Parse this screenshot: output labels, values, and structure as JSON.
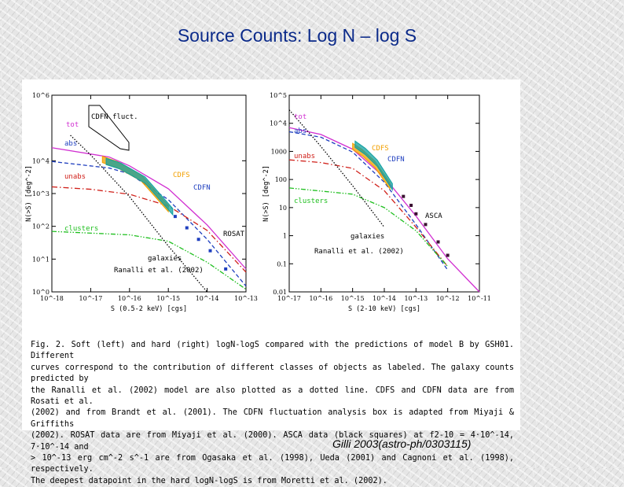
{
  "slide": {
    "title": "Source Counts:  Log N – log S",
    "citation": "Gilli 2003(astro-ph/0303115)"
  },
  "colors": {
    "title": "#0b2a8a",
    "tot": "#d12fd1",
    "abs": "#1f3fbf",
    "unabs": "#d0201a",
    "clusters": "#1fbf1f",
    "galaxies": "#000000",
    "cdfs": "#f2a000",
    "cdfn": "#10a0a0",
    "asca": "#3a1030"
  },
  "caption": {
    "lines": [
      "Fig. 2. Soft (left) and hard (right) logN-logS compared with the predictions of model B by GSH01. Different",
      "curves correspond to the contribution of different classes of objects as labeled. The galaxy counts predicted by",
      "the Ranalli et al. (2002) model are also plotted as a dotted line. CDFS and CDFN data are from Rosati et al.",
      "(2002) and from Brandt et al. (2001). The CDFN fluctuation analysis box is adapted from Miyaji & Griffiths",
      "(2002). ROSAT data are from Miyaji et al. (2000). ASCA data (black squares) at f2-10 = 4·10^-14, 7·10^-14 and",
      "> 10^-13 erg cm^-2 s^-1 are from Ogasaka et al. (1998), Ueda (2001) and Cagnoni et al. (1998), respectively.",
      "The deepest datapoint in the hard logN-logS is from Moretti et al. (2002)."
    ]
  },
  "chart_data": [
    {
      "type": "line",
      "title": "",
      "xlabel": "S (0.5-2 keV) [cgs]",
      "ylabel": "N(>S) [deg^-2]",
      "xscale": "log",
      "yscale": "log",
      "xlim": [
        1e-18,
        1e-13
      ],
      "ylim": [
        1,
        1000000.0
      ],
      "x_tick_labels": [
        "10^-18",
        "10^-17",
        "10^-16",
        "10^-15",
        "10^-14",
        "10^-13"
      ],
      "y_tick_labels": [
        "10^0",
        "10^1",
        "10^2",
        "10^3",
        "10^4",
        "10^6"
      ],
      "series": [
        {
          "name": "tot",
          "color": "#d12fd1",
          "style": "solid",
          "x": [
            1e-18,
            3e-17,
            1e-16,
            1e-15,
            1e-14,
            1e-13
          ],
          "y": [
            25000,
            13000,
            7000,
            1400,
            110,
            5
          ]
        },
        {
          "name": "abs",
          "color": "#1f3fbf",
          "style": "dashed",
          "x": [
            1e-18,
            3e-17,
            1e-16,
            1e-15,
            1e-14,
            1e-13
          ],
          "y": [
            9500,
            6000,
            4000,
            650,
            40,
            1.5
          ]
        },
        {
          "name": "unabs",
          "color": "#d0201a",
          "style": "dashdot",
          "x": [
            1e-18,
            1e-17,
            1e-16,
            1e-15,
            1e-14,
            1e-13
          ],
          "y": [
            1600,
            1350,
            950,
            420,
            75,
            4
          ]
        },
        {
          "name": "clusters",
          "color": "#1fbf1f",
          "style": "dashdotdot",
          "x": [
            1e-18,
            1e-16,
            1e-15,
            1e-14,
            1e-13
          ],
          "y": [
            70,
            55,
            35,
            8,
            1.2
          ]
        },
        {
          "name": "galaxies",
          "color": "#000000",
          "style": "dotted",
          "x": [
            3e-18,
            1e-17,
            1e-16,
            1e-15,
            1e-14
          ],
          "y": [
            60000,
            15000,
            800,
            25,
            1
          ]
        },
        {
          "name": "CDFS",
          "color": "#f2a000",
          "style": "band",
          "x": [
            2e-17,
            5e-17,
            2e-16,
            1e-15
          ],
          "y": [
            11000,
            7500,
            3000,
            350
          ]
        },
        {
          "name": "CDFN",
          "color": "#10a0a0",
          "style": "band",
          "x": [
            2.5e-17,
            6e-17,
            2.5e-16,
            1.3e-15
          ],
          "y": [
            9500,
            6800,
            2600,
            280
          ]
        },
        {
          "name": "ROSAT",
          "color": "#1f3fbf",
          "style": "points",
          "x": [
            1.5e-15,
            3e-15,
            6e-15,
            1.2e-14,
            3e-14
          ],
          "y": [
            200,
            90,
            40,
            18,
            5
          ]
        }
      ],
      "annotations": [
        "CDFN fluct.",
        "tot",
        "abs",
        "unabs",
        "clusters",
        "galaxies",
        "Ranalli et al. (2002)",
        "CDFS",
        "CDFN",
        "ROSAT"
      ]
    },
    {
      "type": "line",
      "title": "",
      "xlabel": "S (2-10 keV) [cgs]",
      "ylabel": "N(>S) [deg^-2]",
      "xscale": "log",
      "yscale": "log",
      "xlim": [
        1e-17,
        1e-11
      ],
      "ylim": [
        0.01,
        100000.0
      ],
      "x_tick_labels": [
        "10^-17",
        "10^-16",
        "10^-15",
        "10^-14",
        "10^-13",
        "10^-12",
        "10^-11"
      ],
      "y_tick_labels": [
        "10^5",
        "10^4",
        "1000",
        "100",
        "10",
        "1",
        "0.1",
        "0.01"
      ],
      "series": [
        {
          "name": "tot",
          "color": "#d12fd1",
          "style": "solid",
          "x": [
            1e-17,
            1e-16,
            1e-15,
            1e-14,
            1e-13,
            1e-12,
            1e-11
          ],
          "y": [
            7000,
            4000,
            1200,
            120,
            5,
            0.15,
            0.01
          ]
        },
        {
          "name": "abs",
          "color": "#1f3fbf",
          "style": "dashed",
          "x": [
            1e-17,
            1e-16,
            1e-15,
            1e-14,
            1e-13,
            1e-12
          ],
          "y": [
            5000,
            3200,
            950,
            80,
            2.5,
            0.06
          ]
        },
        {
          "name": "unabs",
          "color": "#d0201a",
          "style": "dashdot",
          "x": [
            1e-17,
            1e-16,
            1e-15,
            1e-14,
            1e-13,
            1e-12
          ],
          "y": [
            500,
            400,
            250,
            40,
            2,
            0.08
          ]
        },
        {
          "name": "clusters",
          "color": "#1fbf1f",
          "style": "dashdotdot",
          "x": [
            1e-17,
            1e-15,
            1e-14,
            1e-13,
            1e-12
          ],
          "y": [
            50,
            30,
            10,
            1.5,
            0.08
          ]
        },
        {
          "name": "galaxies",
          "color": "#000000",
          "style": "dotted",
          "x": [
            1e-17,
            1e-16,
            1e-15,
            1e-14
          ],
          "y": [
            30000,
            1500,
            60,
            2
          ]
        },
        {
          "name": "CDFS",
          "color": "#f2a000",
          "style": "band",
          "x": [
            1e-15,
            2e-15,
            5e-15,
            1.5e-14
          ],
          "y": [
            1500,
            900,
            350,
            60
          ]
        },
        {
          "name": "CDFN",
          "color": "#10a0a0",
          "style": "band",
          "x": [
            1.2e-15,
            2.5e-15,
            6e-15,
            1.8e-14
          ],
          "y": [
            1800,
            1000,
            380,
            55
          ]
        },
        {
          "name": "ASCA",
          "color": "#3a1030",
          "style": "points",
          "x": [
            4e-14,
            7e-14,
            1e-13,
            2e-13,
            5e-13,
            1e-12
          ],
          "y": [
            25,
            12,
            6,
            2.5,
            0.6,
            0.2
          ]
        }
      ],
      "annotations": [
        "tot",
        "abs",
        "unabs",
        "clusters",
        "galaxies",
        "Ranalli et al. (2002)",
        "CDFS",
        "CDFN",
        "ASCA"
      ]
    }
  ]
}
